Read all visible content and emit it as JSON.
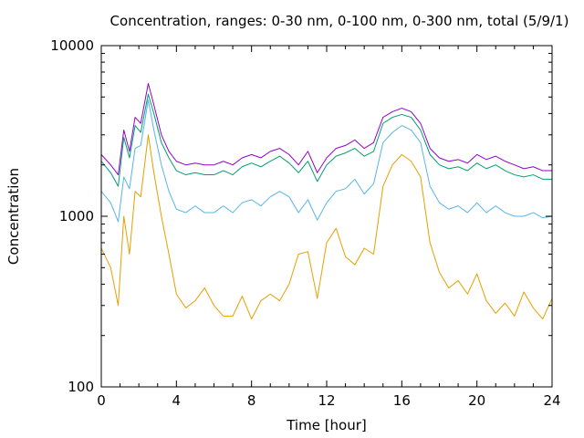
{
  "chart_data": {
    "type": "line",
    "title": "Concentration, ranges: 0-30 nm, 0-100 nm, 0-300 nm, total (5/9/1)",
    "xlabel": "Time [hour]",
    "ylabel": "Concentration",
    "xlim": [
      0,
      24
    ],
    "ylim": [
      100,
      10000
    ],
    "yscale": "log",
    "grid": false,
    "legend": "none",
    "x_ticks": [
      0,
      4,
      8,
      12,
      16,
      20,
      24
    ],
    "x_tick_labels": [
      "0",
      "4",
      "8",
      "12",
      "16",
      "20",
      "24"
    ],
    "y_ticks": [
      100,
      1000,
      10000
    ],
    "y_tick_labels": [
      "100",
      "1000",
      "10000"
    ],
    "x": [
      0,
      0.5,
      0.9,
      1.2,
      1.5,
      1.8,
      2.1,
      2.5,
      2.8,
      3.2,
      3.6,
      4.0,
      4.5,
      5.0,
      5.5,
      6.0,
      6.5,
      7.0,
      7.5,
      8.0,
      8.5,
      9.0,
      9.5,
      10.0,
      10.5,
      11.0,
      11.5,
      12.0,
      12.5,
      13.0,
      13.5,
      14.0,
      14.5,
      15.0,
      15.5,
      16.0,
      16.5,
      17.0,
      17.5,
      18.0,
      18.5,
      19.0,
      19.5,
      20.0,
      20.5,
      21.0,
      21.5,
      22.0,
      22.5,
      23.0,
      23.5,
      24.0
    ],
    "series": [
      {
        "color": "#9400d3",
        "values": [
          2300,
          2000,
          1750,
          3200,
          2400,
          3800,
          3500,
          6000,
          4500,
          3000,
          2400,
          2100,
          2000,
          2050,
          2000,
          2000,
          2100,
          2000,
          2200,
          2300,
          2200,
          2400,
          2500,
          2300,
          2000,
          2400,
          1800,
          2200,
          2500,
          2600,
          2800,
          2500,
          2700,
          3800,
          4100,
          4300,
          4100,
          3500,
          2500,
          2200,
          2100,
          2150,
          2050,
          2300,
          2150,
          2250,
          2100,
          2000,
          1900,
          1950,
          1850,
          1850
        ]
      },
      {
        "color": "#009e73",
        "values": [
          2100,
          1800,
          1500,
          2900,
          2200,
          3400,
          3100,
          5200,
          4000,
          2700,
          2200,
          1850,
          1750,
          1800,
          1750,
          1750,
          1850,
          1750,
          1950,
          2050,
          1950,
          2100,
          2250,
          2050,
          1800,
          2100,
          1600,
          2000,
          2250,
          2350,
          2500,
          2250,
          2400,
          3500,
          3800,
          3950,
          3800,
          3200,
          2300,
          2000,
          1900,
          1950,
          1850,
          2050,
          1900,
          2000,
          1850,
          1750,
          1700,
          1750,
          1650,
          1650
        ]
      },
      {
        "color": "#56b4e9",
        "values": [
          1400,
          1200,
          930,
          1700,
          1450,
          2500,
          2600,
          4800,
          3200,
          2000,
          1400,
          1100,
          1050,
          1150,
          1050,
          1050,
          1150,
          1050,
          1200,
          1250,
          1150,
          1300,
          1400,
          1300,
          1050,
          1250,
          950,
          1200,
          1400,
          1450,
          1650,
          1350,
          1550,
          2700,
          3100,
          3400,
          3200,
          2700,
          1500,
          1200,
          1100,
          1150,
          1050,
          1200,
          1050,
          1150,
          1050,
          1000,
          1000,
          1050,
          980,
          1000
        ]
      },
      {
        "color": "#e69f00",
        "values": [
          650,
          500,
          300,
          1000,
          600,
          1400,
          1300,
          3000,
          1800,
          1000,
          600,
          350,
          290,
          320,
          380,
          300,
          260,
          260,
          340,
          250,
          320,
          350,
          320,
          400,
          600,
          620,
          330,
          700,
          850,
          580,
          520,
          650,
          600,
          1500,
          2000,
          2300,
          2100,
          1700,
          700,
          470,
          380,
          420,
          350,
          460,
          320,
          270,
          310,
          260,
          360,
          290,
          250,
          330
        ]
      }
    ]
  }
}
